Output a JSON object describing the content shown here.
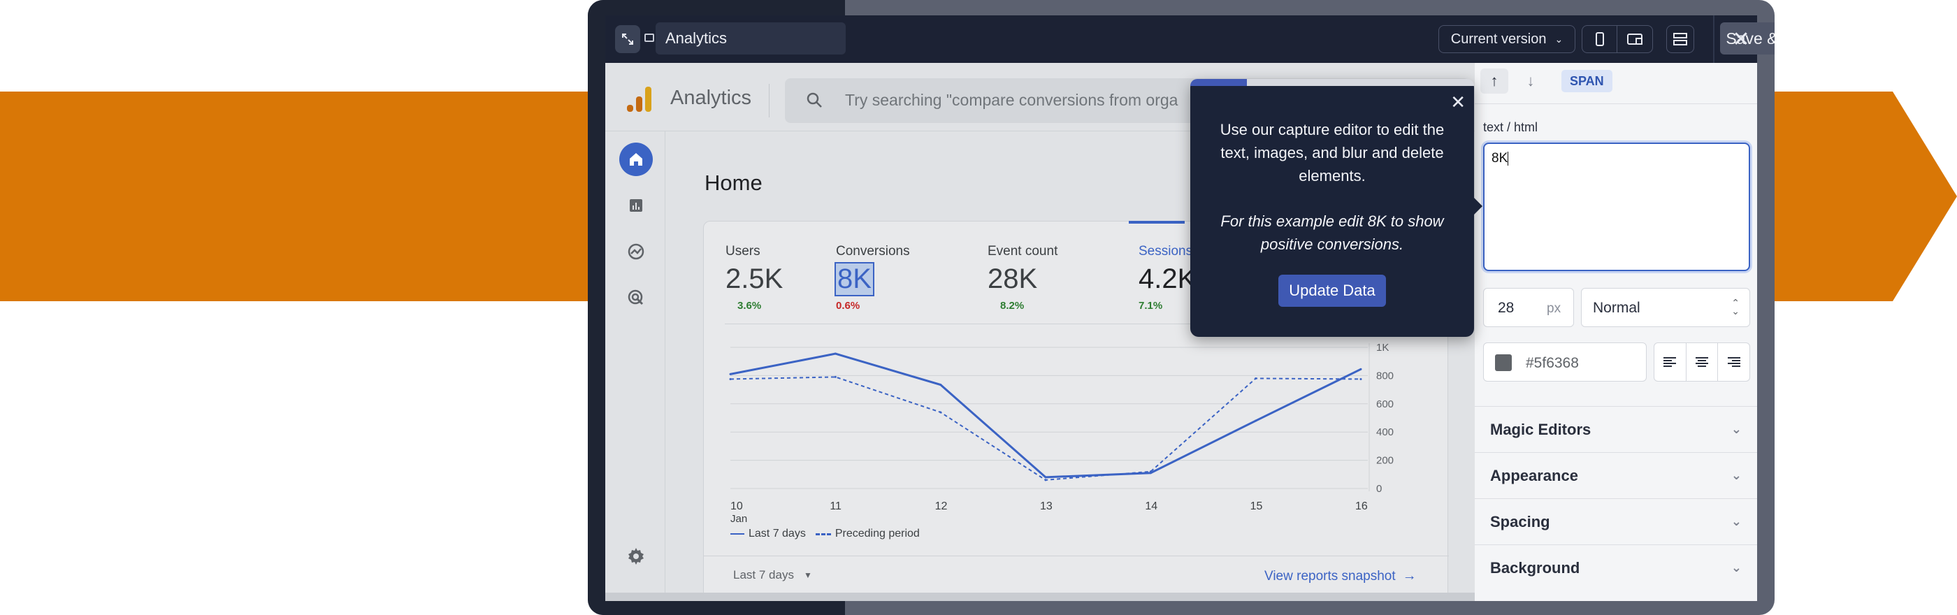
{
  "window": {
    "title": "Analytics",
    "version_select": "Current version",
    "save_close": "Save & Close"
  },
  "ga": {
    "app_name": "Analytics",
    "search_placeholder": "Try searching \"compare conversions from orga",
    "page_title": "Home",
    "metrics": [
      {
        "label": "Users",
        "value": "2.5K",
        "pct": "3.6%",
        "pct_color": "#2e7d32"
      },
      {
        "label": "Conversions",
        "value": "8K",
        "pct": "0.6%",
        "pct_color": "#c62828"
      },
      {
        "label": "Event count",
        "value": "28K",
        "pct": "8.2%",
        "pct_color": "#2e7d32"
      },
      {
        "label": "Sessions",
        "value": "4.2K",
        "pct": "7.1%",
        "pct_color": "#2e7d32"
      }
    ],
    "date_range": "Last 7 days",
    "view_reports": "View reports snapshot"
  },
  "chart_data": {
    "type": "line",
    "x": [
      "10",
      "11",
      "12",
      "13",
      "14",
      "15",
      "16"
    ],
    "x_sub": [
      "Jan",
      "",
      "",
      "",
      "",
      "",
      ""
    ],
    "y_ticks": [
      "1K",
      "800",
      "600",
      "400",
      "200",
      "0"
    ],
    "ylim": [
      0,
      1000
    ],
    "series": [
      {
        "name": "Last 7 days",
        "values": [
          810,
          955,
          735,
          80,
          110,
          480,
          845
        ],
        "style": "solid"
      },
      {
        "name": "Preceding period",
        "values": [
          775,
          790,
          540,
          60,
          120,
          780,
          775
        ],
        "style": "dashed"
      }
    ],
    "color": "#3b63c4",
    "legend_position": "bottom-left",
    "grid": true
  },
  "tooltip": {
    "line1": "Use our capture editor to edit the",
    "line2": "text, images, and blur and delete",
    "line3": "elements.",
    "italic1": "For this example edit 8K to show",
    "italic2": "positive conversions.",
    "button": "Update Data",
    "progress": 0.2
  },
  "panel": {
    "tag": "SPAN",
    "field_label": "text / html",
    "text_value": "8K",
    "font_size": "28",
    "font_unit": "px",
    "font_weight": "Normal",
    "color_value": "#5f6368",
    "sections": [
      "Magic Editors",
      "Appearance",
      "Spacing",
      "Background"
    ]
  },
  "colors": {
    "orange": "#d97706",
    "accent": "#3f59b3",
    "text_color_swatch": "#5f6368"
  }
}
